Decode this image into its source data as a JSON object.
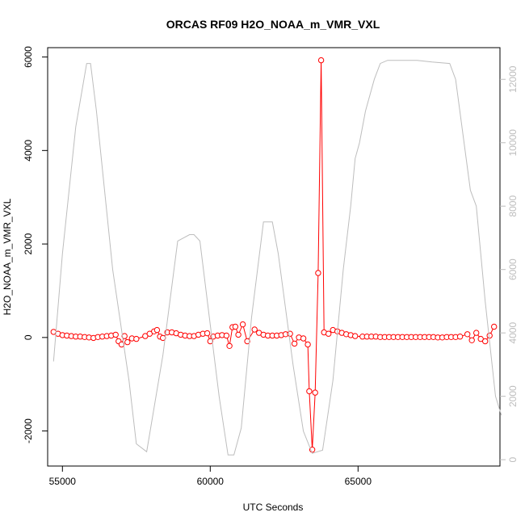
{
  "chart_data": {
    "type": "line",
    "title": "ORCAS RF09 H2O_NOAA_m_VMR_VXL",
    "xlabel": "UTC Seconds",
    "ylabel": "H2O_NOAA_m_VMR_VXL",
    "xlim": [
      54500,
      69800
    ],
    "ylim": [
      -2750,
      6200
    ],
    "y2lim": [
      -200,
      13000
    ],
    "x_ticks": [
      55000,
      60000,
      65000
    ],
    "y_ticks": [
      -2000,
      0,
      2000,
      4000,
      6000
    ],
    "y2_ticks": [
      0,
      2000,
      4000,
      6000,
      8000,
      10000,
      12000
    ],
    "series": [
      {
        "axis": "left",
        "color": "#ff0000",
        "style": "line+points",
        "points": [
          [
            54700,
            120
          ],
          [
            54850,
            80
          ],
          [
            55000,
            50
          ],
          [
            55150,
            40
          ],
          [
            55300,
            30
          ],
          [
            55450,
            20
          ],
          [
            55600,
            20
          ],
          [
            55750,
            10
          ],
          [
            55900,
            0
          ],
          [
            56050,
            -10
          ],
          [
            56200,
            10
          ],
          [
            56350,
            20
          ],
          [
            56500,
            30
          ],
          [
            56650,
            40
          ],
          [
            56800,
            60
          ],
          [
            56900,
            -80
          ],
          [
            57000,
            -150
          ],
          [
            57100,
            30
          ],
          [
            57200,
            -100
          ],
          [
            57350,
            -20
          ],
          [
            57500,
            -30
          ],
          [
            57800,
            30
          ],
          [
            57950,
            80
          ],
          [
            58100,
            130
          ],
          [
            58200,
            160
          ],
          [
            58300,
            20
          ],
          [
            58400,
            -10
          ],
          [
            58550,
            110
          ],
          [
            58700,
            110
          ],
          [
            58850,
            90
          ],
          [
            59000,
            60
          ],
          [
            59150,
            40
          ],
          [
            59300,
            30
          ],
          [
            59450,
            30
          ],
          [
            59600,
            60
          ],
          [
            59750,
            80
          ],
          [
            59900,
            90
          ],
          [
            60000,
            -80
          ],
          [
            60100,
            20
          ],
          [
            60250,
            40
          ],
          [
            60400,
            50
          ],
          [
            60550,
            40
          ],
          [
            60650,
            -180
          ],
          [
            60750,
            220
          ],
          [
            60850,
            230
          ],
          [
            60950,
            60
          ],
          [
            61100,
            280
          ],
          [
            61250,
            -80
          ],
          [
            61500,
            170
          ],
          [
            61650,
            100
          ],
          [
            61800,
            60
          ],
          [
            61950,
            40
          ],
          [
            62100,
            40
          ],
          [
            62250,
            40
          ],
          [
            62400,
            50
          ],
          [
            62550,
            70
          ],
          [
            62700,
            80
          ],
          [
            62850,
            -130
          ],
          [
            63000,
            0
          ],
          [
            63150,
            -20
          ],
          [
            63300,
            -150
          ],
          [
            63350,
            -1150
          ],
          [
            63450,
            -2400
          ],
          [
            63550,
            -1180
          ],
          [
            63650,
            1380
          ],
          [
            63750,
            5930
          ],
          [
            63850,
            110
          ],
          [
            64000,
            80
          ],
          [
            64150,
            160
          ],
          [
            64300,
            130
          ],
          [
            64450,
            100
          ],
          [
            64600,
            70
          ],
          [
            64750,
            50
          ],
          [
            64900,
            30
          ],
          [
            65150,
            20
          ],
          [
            65300,
            20
          ],
          [
            65450,
            20
          ],
          [
            65600,
            20
          ],
          [
            65750,
            10
          ],
          [
            65900,
            10
          ],
          [
            66050,
            10
          ],
          [
            66200,
            10
          ],
          [
            66350,
            10
          ],
          [
            66500,
            10
          ],
          [
            66650,
            10
          ],
          [
            66800,
            10
          ],
          [
            66950,
            10
          ],
          [
            67100,
            10
          ],
          [
            67250,
            10
          ],
          [
            67400,
            10
          ],
          [
            67550,
            10
          ],
          [
            67700,
            0
          ],
          [
            67850,
            0
          ],
          [
            68000,
            10
          ],
          [
            68150,
            10
          ],
          [
            68300,
            10
          ],
          [
            68450,
            20
          ],
          [
            68700,
            70
          ],
          [
            68850,
            -60
          ],
          [
            69000,
            100
          ],
          [
            69150,
            -30
          ],
          [
            69300,
            -80
          ],
          [
            69450,
            40
          ],
          [
            69600,
            230
          ]
        ]
      },
      {
        "axis": "right",
        "color": "#bdbdbd",
        "style": "line",
        "points": [
          [
            54700,
            3100
          ],
          [
            55000,
            6500
          ],
          [
            55450,
            10500
          ],
          [
            55820,
            12500
          ],
          [
            55950,
            12500
          ],
          [
            56150,
            11000
          ],
          [
            56700,
            6000
          ],
          [
            57250,
            2500
          ],
          [
            57500,
            500
          ],
          [
            57850,
            250
          ],
          [
            58400,
            3300
          ],
          [
            58900,
            6900
          ],
          [
            59300,
            7100
          ],
          [
            59450,
            7100
          ],
          [
            59650,
            6900
          ],
          [
            60100,
            3500
          ],
          [
            60300,
            2000
          ],
          [
            60600,
            150
          ],
          [
            60800,
            150
          ],
          [
            61050,
            1000
          ],
          [
            61400,
            4500
          ],
          [
            61800,
            7500
          ],
          [
            62100,
            7500
          ],
          [
            62300,
            6500
          ],
          [
            62800,
            3000
          ],
          [
            63150,
            900
          ],
          [
            63450,
            200
          ],
          [
            63800,
            300
          ],
          [
            64150,
            2500
          ],
          [
            64500,
            6000
          ],
          [
            64750,
            8000
          ],
          [
            64900,
            9500
          ],
          [
            65050,
            10000
          ],
          [
            65250,
            11000
          ],
          [
            65550,
            12000
          ],
          [
            65750,
            12500
          ],
          [
            66000,
            12600
          ],
          [
            66500,
            12600
          ],
          [
            67000,
            12600
          ],
          [
            67500,
            12550
          ],
          [
            68100,
            12500
          ],
          [
            68300,
            12000
          ],
          [
            68800,
            8500
          ],
          [
            69000,
            8000
          ],
          [
            69300,
            5000
          ],
          [
            69650,
            2000
          ],
          [
            69850,
            1400
          ]
        ]
      }
    ],
    "grid": false
  }
}
